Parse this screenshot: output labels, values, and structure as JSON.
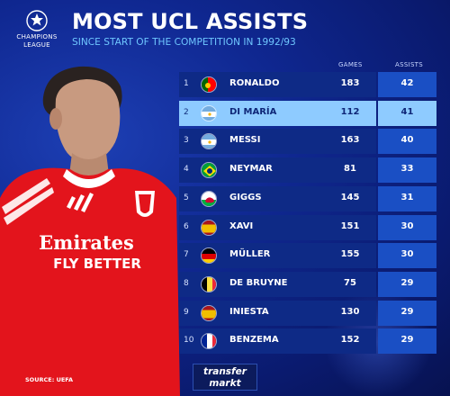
{
  "header": {
    "logo_text_line1": "CHAMPIONS",
    "logo_text_line2": "LEAGUE",
    "title": "MOST UCL ASSISTS",
    "subtitle": "SINCE START OF THE COMPETITION IN 1992/93"
  },
  "table": {
    "col_games": "GAMES",
    "col_assists": "ASSISTS",
    "rows": [
      {
        "rank": "1",
        "name": "RONALDO",
        "games": "183",
        "assists": "42",
        "flag": "portugal-flag-icon",
        "highlight": false
      },
      {
        "rank": "2",
        "name": "DI MARÍA",
        "games": "112",
        "assists": "41",
        "flag": "argentina-flag-icon",
        "highlight": true
      },
      {
        "rank": "3",
        "name": "MESSI",
        "games": "163",
        "assists": "40",
        "flag": "argentina-flag-icon",
        "highlight": false
      },
      {
        "rank": "4",
        "name": "NEYMAR",
        "games": "81",
        "assists": "33",
        "flag": "brazil-flag-icon",
        "highlight": false
      },
      {
        "rank": "5",
        "name": "GIGGS",
        "games": "145",
        "assists": "31",
        "flag": "wales-flag-icon",
        "highlight": false
      },
      {
        "rank": "6",
        "name": "XAVI",
        "games": "151",
        "assists": "30",
        "flag": "spain-flag-icon",
        "highlight": false
      },
      {
        "rank": "7",
        "name": "MÜLLER",
        "games": "155",
        "assists": "30",
        "flag": "germany-flag-icon",
        "highlight": false
      },
      {
        "rank": "8",
        "name": "DE BRUYNE",
        "games": "75",
        "assists": "29",
        "flag": "belgium-flag-icon",
        "highlight": false
      },
      {
        "rank": "9",
        "name": "INIESTA",
        "games": "130",
        "assists": "29",
        "flag": "spain-flag-icon",
        "highlight": false
      },
      {
        "rank": "10",
        "name": "BENZEMA",
        "games": "152",
        "assists": "29",
        "flag": "france-flag-icon",
        "highlight": false
      }
    ]
  },
  "player": {
    "sponsor_line1": "Emirates",
    "sponsor_line2": "FLY BETTER"
  },
  "footer": {
    "source": "SOURCE: UEFA",
    "brand_line1": "transfer",
    "brand_line2": "markt"
  },
  "colors": {
    "background": "#0f2790",
    "row": "#0e2a86",
    "assists_cell": "#1a4fc4",
    "highlight": "#8ecbff",
    "subtitle": "#6fc7ff",
    "shirt": "#e3141c"
  }
}
